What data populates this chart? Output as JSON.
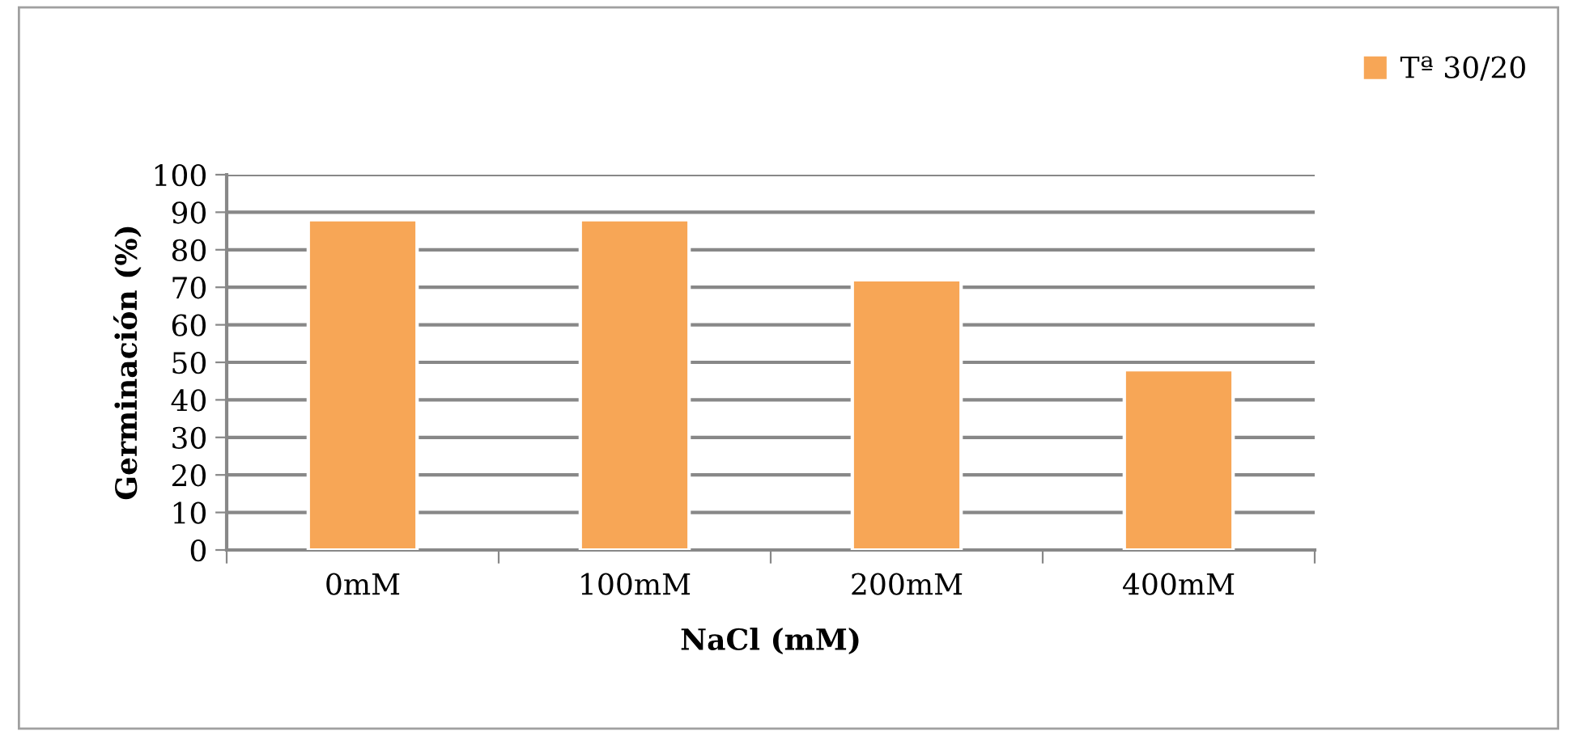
{
  "chart_data": {
    "type": "bar",
    "xlabel": "NaCl (mM)",
    "ylabel": "Germinación (%)",
    "categories": [
      "0mM",
      "100mM",
      "200mM",
      "400mM"
    ],
    "series": [
      {
        "name": "Tª 30/20",
        "color": "#f7a656",
        "values": [
          88,
          88,
          72,
          48
        ]
      }
    ],
    "ylim": [
      0,
      100
    ],
    "yticks": [
      0,
      10,
      20,
      30,
      40,
      50,
      60,
      70,
      80,
      90,
      100
    ],
    "grid": "y",
    "legend": "top right"
  }
}
